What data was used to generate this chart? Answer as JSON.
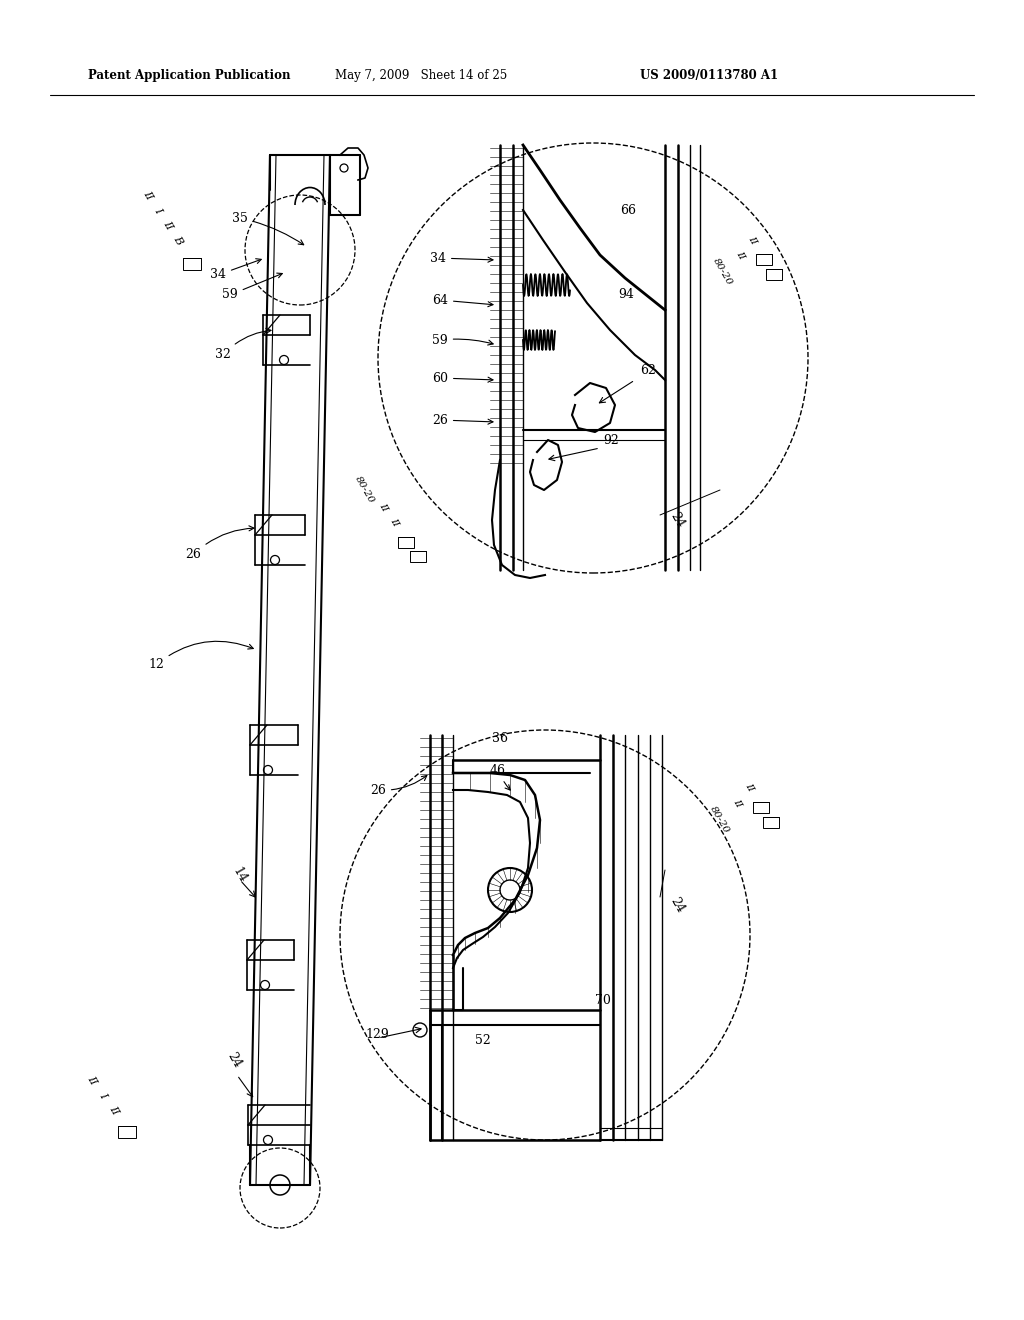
{
  "header_left": "Patent Application Publication",
  "header_mid": "May 7, 2009   Sheet 14 of 25",
  "header_right": "US 2009/0113780 A1",
  "background_color": "#ffffff",
  "line_color": "#000000",
  "fig_width": 10.24,
  "fig_height": 13.2,
  "dpi": 100
}
